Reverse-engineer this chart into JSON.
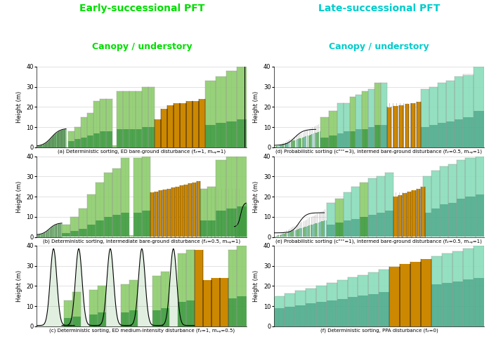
{
  "title_left": "Early-successional PFT",
  "title_right": "Late-successional PFT",
  "subtitle_left": "Canopy / understory",
  "subtitle_right": "Canopy / understory",
  "title_left_color": "#00dd00",
  "title_right_color": "#00cccc",
  "subtitle_left_color": "#00dd00",
  "subtitle_right_color": "#00cccc",
  "ylabel": "Height (m)",
  "ylim": [
    0,
    40
  ],
  "yticks": [
    0,
    10,
    20,
    30,
    40
  ],
  "subplot_labels": [
    "(a) Deterministic sorting, ED bare-ground disturbance (f₂=1, mᵤᵩ=1)",
    "(b) Deterministic sorting, intermediate bare-ground disturbance (f₂=0.5, mᵤᵩ=1)",
    "(c) Deterministic sorting, ED medium-intensity disturbance (f₂=1, mᵤᵩ=0.5)",
    "(d) Probabilistic sorting (cᵉˣᶜ=3), intermed bare-ground disturbance (f₂=0.5, mᵤᵩ=1)",
    "(e) Probabilistic sorting (cᵉˣᶜ=1), intermed bare-ground disturbance (f₂=0.5, mᵤᵩ=1)",
    "(f) Deterministic sorting, PPA disturbance (f₂=0)"
  ],
  "color_early_canopy": "#3a9a3a",
  "color_early_understory": "#8ccc6a",
  "color_late_canopy": "#4aab8a",
  "color_late_understory": "#88ddbb",
  "color_orange": "#cc8800",
  "color_gray_stem": "#aaaaaa",
  "color_dark_stem": "#555555",
  "bg_color": "#ffffff"
}
